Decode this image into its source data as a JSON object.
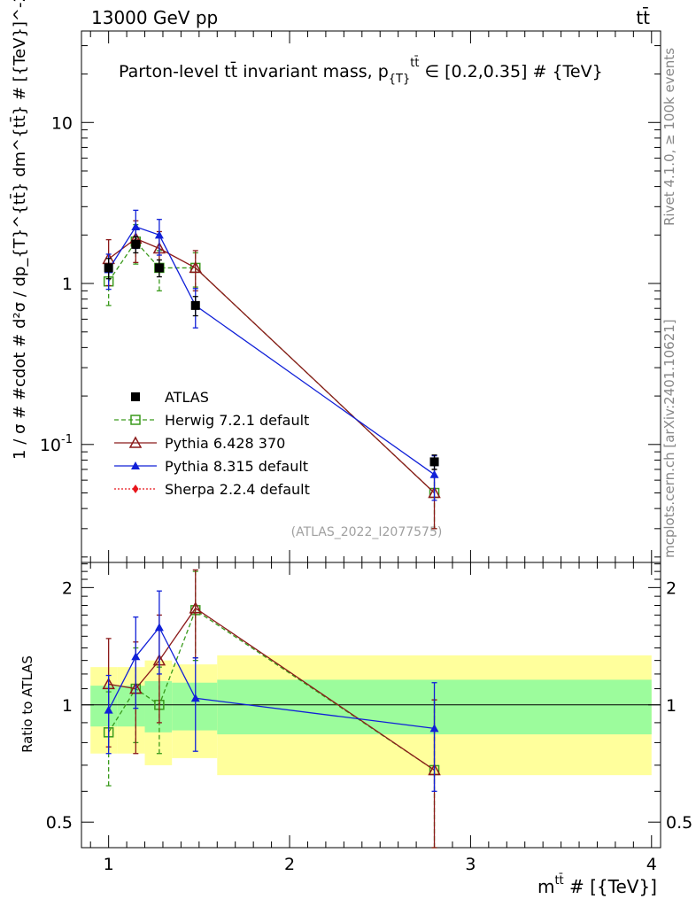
{
  "header": {
    "energy_label": "13000 GeV pp",
    "process_label": "tt̄"
  },
  "side_texts": {
    "rivet": "Rivet 4.1.0, ≥ 100k events",
    "mcplots": "mcplots.cern.ch [arXiv:2401.10621]"
  },
  "chart_data": {
    "type": "line",
    "title": "Parton-level tt̄ invariant mass, p_{T}^{tt̄} ∈ [0.2,0.35] # {TeV}",
    "title_main": "Parton-level tt̄ invariant mass, p",
    "title_sub": "{T}",
    "title_sup": "tt̄",
    "title_tail": " ∈ [0.2,0.35] # {TeV}",
    "analysis_id": "(ATLAS_2022_I2077575)",
    "xlabel_main": "m",
    "xlabel_sup": "tt̄",
    "xlabel_tail": " # [{TeV}]",
    "ylabel_main": "1 / σ # #cdot # d²σ / dp_{T}^{tt̄} dm^{tt̄} # [{TeV}]^-2",
    "ratio_ylabel": "Ratio to ATLAS",
    "xlim": [
      0.85,
      4.05
    ],
    "ylim_main": [
      0.0185,
      37
    ],
    "ylim_ratio": [
      0.43,
      2.32
    ],
    "x_ticks": [
      "1",
      "2",
      "3",
      "4"
    ],
    "y_ticks_main": [
      "10",
      "1",
      "10^-1"
    ],
    "y_ticks_ratio": [
      "2",
      "1",
      "0.5"
    ],
    "bins": [
      {
        "lo": 0.9,
        "hi": 1.05,
        "x": 1.0,
        "value": 1.25,
        "err": 0.18,
        "rel_inner": 0.12,
        "rel_outer": 0.25
      },
      {
        "lo": 1.05,
        "hi": 1.2,
        "x": 1.15,
        "value": 1.75,
        "err": 0.2,
        "rel_inner": 0.12,
        "rel_outer": 0.25
      },
      {
        "lo": 1.2,
        "hi": 1.35,
        "x": 1.28,
        "value": 1.25,
        "err": 0.15,
        "rel_inner": 0.15,
        "rel_outer": 0.3
      },
      {
        "lo": 1.35,
        "hi": 1.6,
        "x": 1.48,
        "value": 0.73,
        "err": 0.1,
        "rel_inner": 0.14,
        "rel_outer": 0.27
      },
      {
        "lo": 1.6,
        "hi": 4.0,
        "x": 2.8,
        "value": 0.078,
        "err": 0.008,
        "rel_inner": 0.16,
        "rel_outer": 0.34
      }
    ],
    "series": [
      {
        "name": "ATLAS",
        "key": "atlas",
        "color": "#000000",
        "marker": "square-filled",
        "dash": "",
        "x": [
          1.0,
          1.15,
          1.28,
          1.48,
          2.8
        ],
        "values": [
          1.25,
          1.75,
          1.25,
          0.73,
          0.078
        ],
        "errors": [
          0.18,
          0.2,
          0.15,
          0.1,
          0.008
        ],
        "ratio": [
          1.0,
          1.0,
          1.0,
          1.0,
          1.0
        ],
        "ratio_err": [
          0.0,
          0.0,
          0.0,
          0.0,
          0.0
        ]
      },
      {
        "name": "Herwig 7.2.1 default",
        "key": "herwig",
        "color": "#3a9a1c",
        "marker": "square-open",
        "dash": "5,3",
        "x": [
          1.0,
          1.15,
          1.28,
          1.48,
          2.8
        ],
        "values": [
          1.03,
          1.82,
          1.25,
          1.25,
          0.05
        ],
        "errors": [
          0.3,
          0.5,
          0.35,
          0.3,
          0.02
        ],
        "ratio": [
          0.85,
          1.1,
          1.0,
          1.75,
          0.68
        ],
        "ratio_err": [
          0.23,
          0.3,
          0.25,
          0.45,
          0.35
        ]
      },
      {
        "name": "Pythia 6.428 370",
        "key": "py6",
        "color": "#8b1a1a",
        "marker": "triangle-open",
        "dash": "",
        "x": [
          1.0,
          1.15,
          1.28,
          1.48,
          2.8
        ],
        "values": [
          1.42,
          1.9,
          1.65,
          1.25,
          0.05
        ],
        "errors": [
          0.45,
          0.55,
          0.45,
          0.35,
          0.02
        ],
        "ratio": [
          1.13,
          1.1,
          1.3,
          1.77,
          0.68
        ],
        "ratio_err": [
          0.35,
          0.35,
          0.4,
          0.45,
          0.35
        ]
      },
      {
        "name": "Pythia 8.315 default",
        "key": "py8",
        "color": "#1020d8",
        "marker": "triangle-filled",
        "dash": "",
        "x": [
          1.0,
          1.15,
          1.28,
          1.48,
          2.8
        ],
        "values": [
          1.22,
          2.25,
          2.0,
          0.73,
          0.065
        ],
        "errors": [
          0.3,
          0.6,
          0.5,
          0.2,
          0.02
        ],
        "ratio": [
          0.97,
          1.33,
          1.58,
          1.04,
          0.87
        ],
        "ratio_err": [
          0.22,
          0.35,
          0.38,
          0.28,
          0.27
        ]
      },
      {
        "name": "Sherpa 2.2.4 default",
        "key": "sherpa",
        "color": "#e8141b",
        "marker": "diamond-filled",
        "dash": "2,2",
        "x": [],
        "values": [],
        "errors": [],
        "ratio": [],
        "ratio_err": []
      }
    ]
  }
}
